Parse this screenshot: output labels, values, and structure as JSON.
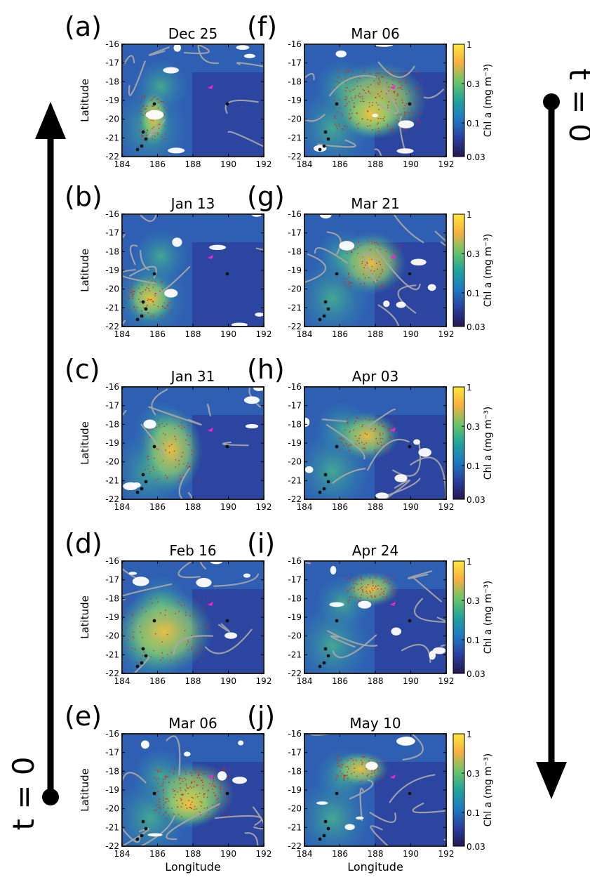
{
  "axes": {
    "xlabel": "Longitude",
    "ylabel": "Latitude",
    "xticks": [
      "184",
      "186",
      "188",
      "190",
      "192"
    ],
    "yticks": [
      "-16",
      "-17",
      "-18",
      "-19",
      "-20",
      "-21",
      "-22"
    ]
  },
  "colorbar": {
    "label": "Chl a (mg m⁻³)",
    "ticks": [
      "1",
      "0.3",
      "0.1",
      "0.03"
    ],
    "colors": [
      "#ffe63a",
      "#f6b040",
      "#6bc46a",
      "#21a39a",
      "#1f79c2",
      "#2a3f9e",
      "#22184f"
    ]
  },
  "time_labels": {
    "left": "t = 0",
    "right": "t = 0"
  },
  "panels": [
    {
      "letter": "(a)",
      "date": "Dec 25"
    },
    {
      "letter": "(b)",
      "date": "Jan 13"
    },
    {
      "letter": "(c)",
      "date": "Jan 31"
    },
    {
      "letter": "(d)",
      "date": "Feb 16"
    },
    {
      "letter": "(e)",
      "date": "Mar 06"
    },
    {
      "letter": "(f)",
      "date": "Mar 06"
    },
    {
      "letter": "(g)",
      "date": "Mar 21"
    },
    {
      "letter": "(h)",
      "date": "Apr 03"
    },
    {
      "letter": "(i)",
      "date": "Apr 24"
    },
    {
      "letter": "(j)",
      "date": "May 10"
    }
  ]
}
